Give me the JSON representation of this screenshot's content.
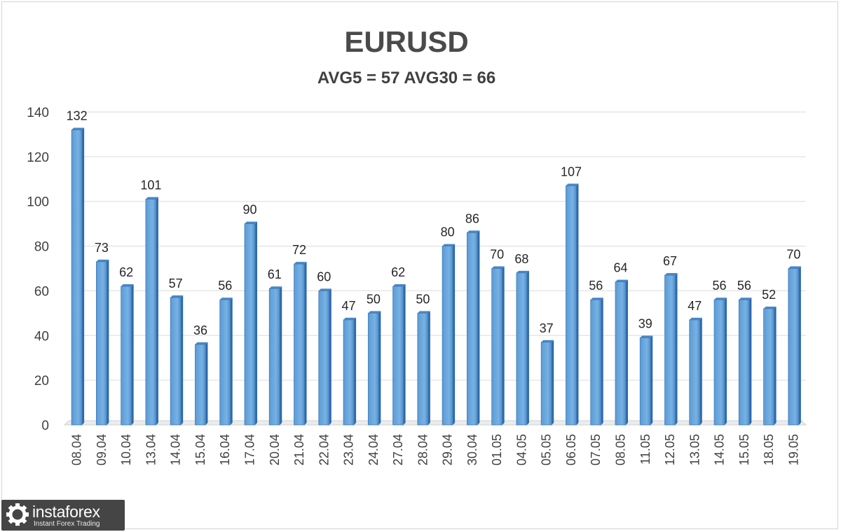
{
  "chart_data": {
    "type": "bar",
    "title": "EURUSD",
    "subtitle": "AVG5 = 57 AVG30 = 66",
    "xlabel": "",
    "ylabel": "",
    "ylim": [
      0,
      140
    ],
    "yticks": [
      0,
      20,
      40,
      60,
      80,
      100,
      120,
      140
    ],
    "grid": true,
    "data_labels": true,
    "bar_color": "#5b9bd5",
    "categories": [
      "08.04",
      "09.04",
      "10.04",
      "13.04",
      "14.04",
      "15.04",
      "16.04",
      "17.04",
      "20.04",
      "21.04",
      "22.04",
      "23.04",
      "24.04",
      "27.04",
      "28.04",
      "29.04",
      "30.04",
      "01.05",
      "04.05",
      "05.05",
      "06.05",
      "07.05",
      "08.05",
      "11.05",
      "12.05",
      "13.05",
      "14.05",
      "15.05",
      "18.05",
      "19.05"
    ],
    "values": [
      132,
      73,
      62,
      101,
      57,
      36,
      56,
      90,
      61,
      72,
      60,
      47,
      50,
      62,
      50,
      80,
      86,
      70,
      68,
      37,
      107,
      56,
      64,
      39,
      67,
      47,
      56,
      56,
      52,
      70
    ]
  },
  "watermark": {
    "name": "instaforex",
    "tagline": "Instant Forex Trading",
    "icon": "gear-logo-icon"
  }
}
